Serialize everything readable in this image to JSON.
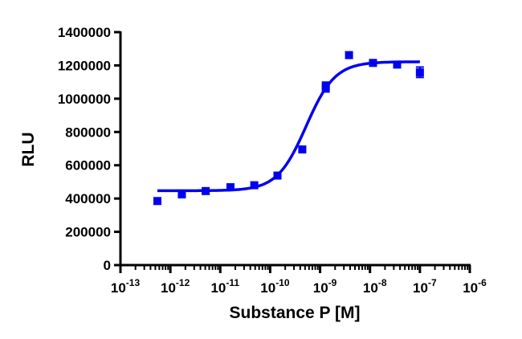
{
  "chart_data": {
    "type": "scatter",
    "title": "",
    "xlabel": "Substance P [M]",
    "ylabel": "RLU",
    "x_scale": "log",
    "xlim": [
      1e-13,
      1e-06
    ],
    "ylim": [
      0,
      1400000
    ],
    "grid": false,
    "x_ticks": [
      {
        "base": "10",
        "exp": "-13"
      },
      {
        "base": "10",
        "exp": "-12"
      },
      {
        "base": "10",
        "exp": "-11"
      },
      {
        "base": "10",
        "exp": "-10"
      },
      {
        "base": "10",
        "exp": "-9"
      },
      {
        "base": "10",
        "exp": "-8"
      },
      {
        "base": "10",
        "exp": "-7"
      },
      {
        "base": "10",
        "exp": "-6"
      }
    ],
    "y_ticks": [
      "0",
      "200000",
      "400000",
      "600000",
      "800000",
      "1000000",
      "1200000",
      "1400000"
    ],
    "marker_color": "#0000ee",
    "line_color": "#0000ee",
    "series": [
      {
        "points": [
          {
            "x": 5.5e-13,
            "y": 385000
          },
          {
            "x": 1.7e-12,
            "y": 425000
          },
          {
            "x": 5.1e-12,
            "y": 445000
          },
          {
            "x": 1.6e-11,
            "y": 468000
          },
          {
            "x": 4.8e-11,
            "y": 480000
          },
          {
            "x": 1.4e-10,
            "y": 538000
          },
          {
            "x": 4.4e-10,
            "y": 695000
          },
          {
            "x": 1.3e-09,
            "y": 1060000
          },
          {
            "x": 1.3e-09,
            "y": 1080000
          },
          {
            "x": 3.8e-09,
            "y": 1262000
          },
          {
            "x": 1.15e-08,
            "y": 1215000
          },
          {
            "x": 3.5e-08,
            "y": 1205000
          },
          {
            "x": 1e-07,
            "y": 1158000
          }
        ],
        "error_bars": [
          {
            "x": 1e-07,
            "low": 1128000,
            "high": 1190000
          }
        ],
        "fit": {
          "model": "four-parameter logistic",
          "bottom": 447000,
          "top": 1222000,
          "logEC50": -9.28,
          "hill": 1.5,
          "x_range": [
            5.5e-13,
            1e-07
          ]
        }
      }
    ]
  }
}
